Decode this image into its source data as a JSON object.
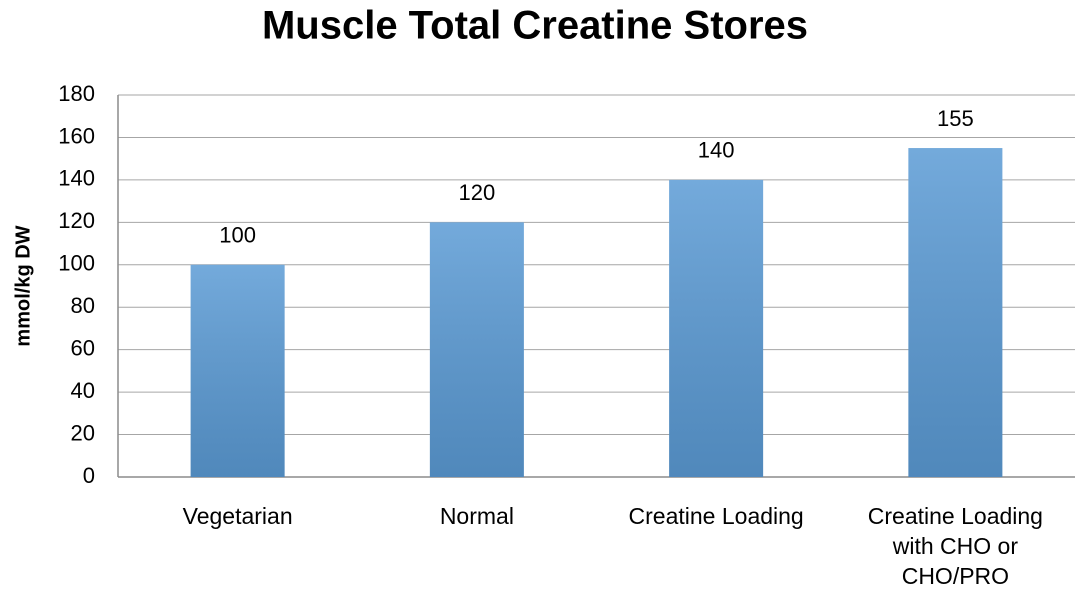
{
  "chart_data": {
    "type": "bar",
    "title": "Muscle Total Creatine Stores",
    "y_label": "mmol/kg DW",
    "categories": [
      "Vegetarian",
      "Normal",
      "Creatine Loading",
      "Creatine Loading with CHO or CHO/PRO"
    ],
    "values": [
      100,
      120,
      140,
      155
    ],
    "color": "#5b9bd5",
    "ylim": [
      0,
      180
    ],
    "yticks": [
      0,
      20,
      40,
      60,
      80,
      100,
      120,
      140,
      160,
      180
    ],
    "grid": true
  }
}
